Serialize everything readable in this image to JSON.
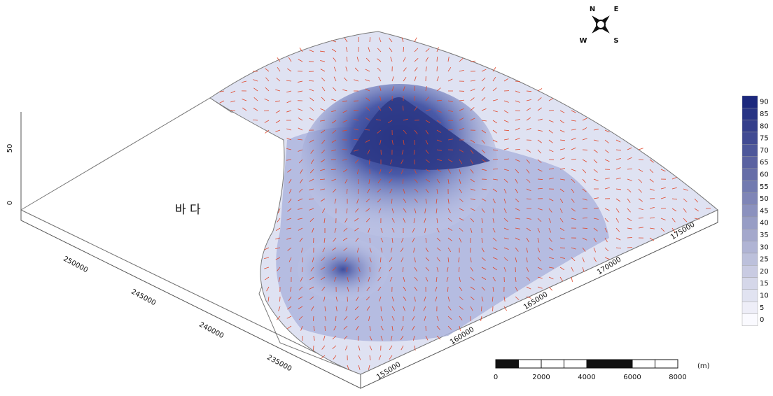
{
  "map": {
    "sea_label": "바 다",
    "z_ticks": [
      "50",
      "0"
    ],
    "y_ticks": [
      "250000",
      "245000",
      "240000",
      "235000"
    ],
    "x_ticks": [
      "155000",
      "160000",
      "165000",
      "170000",
      "175000"
    ],
    "compass": [
      "N",
      "E",
      "S",
      "W"
    ],
    "legend_ticks": [
      "90",
      "85",
      "80",
      "75",
      "70",
      "65",
      "60",
      "55",
      "50",
      "45",
      "40",
      "35",
      "30",
      "25",
      "20",
      "15",
      "10",
      "5",
      "0"
    ],
    "scale_ticks": [
      "0",
      "2000",
      "4000",
      "6000",
      "8000"
    ],
    "scale_unit": "(m)"
  }
}
